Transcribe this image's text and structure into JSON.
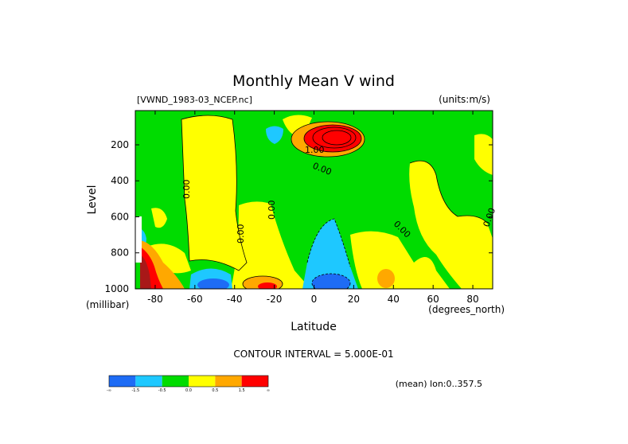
{
  "chart_data": {
    "type": "heatmap",
    "title": "Monthly Mean V wind",
    "file_label": "[VWND_1983-03_NCEP.nc]",
    "units_label": "(units:m/s)",
    "xlabel": "Latitude",
    "x_unit": "(degrees_north)",
    "ylabel": "Level",
    "y_unit": "(millibar)",
    "xlim": [
      -90,
      90
    ],
    "ylim": [
      1000,
      10
    ],
    "x_ticks": [
      "-80",
      "-60",
      "-40",
      "-20",
      "0",
      "20",
      "40",
      "60",
      "80"
    ],
    "x_tick_values": [
      -80,
      -60,
      -40,
      -20,
      0,
      20,
      40,
      60,
      80
    ],
    "y_ticks": [
      "200",
      "400",
      "600",
      "800",
      "1000"
    ],
    "y_tick_values": [
      200,
      400,
      600,
      800,
      1000
    ],
    "contour_interval": "CONTOUR INTERVAL = 5.000E-01",
    "contour_labels": [
      "0.00",
      "1.00"
    ],
    "footer_note": "(mean) lon:0..357.5",
    "colorbar": {
      "colors": [
        "#1e6cf5",
        "#1ec8ff",
        "#00dc00",
        "#ffff00",
        "#ffa800",
        "#ff0000"
      ],
      "labels": [
        "-∞",
        "-1.5",
        "-0.5",
        "0.0",
        "0.5",
        "1.5",
        "∞"
      ]
    },
    "features": [
      {
        "lat": 6,
        "level": 160,
        "value": 2.5
      },
      {
        "lat": 6,
        "level": 960,
        "value": -2.0
      },
      {
        "lat": -52,
        "level": 970,
        "value": -1.5
      },
      {
        "lat": -22,
        "level": 970,
        "value": 1.8
      },
      {
        "lat": -85,
        "level": 900,
        "value": 2.0
      },
      {
        "lat": 42,
        "level": 950,
        "value": 0.6
      },
      {
        "lat": -25,
        "level": 120,
        "value": -0.6
      }
    ]
  }
}
